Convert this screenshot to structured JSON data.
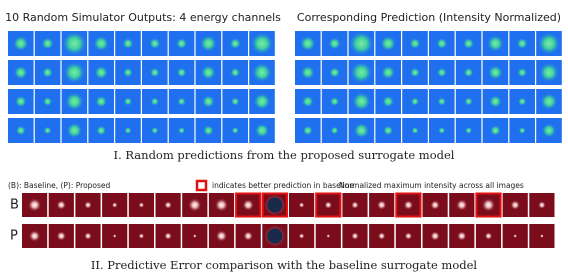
{
  "left_title": "10 Random Simulator Outputs: 4 energy channels",
  "right_title": "Corresponding Prediction (Intensity Normalized)",
  "caption_1": "I. Random predictions from the proposed surrogate model",
  "legend": {
    "baseline_proposed": "(B): Baseline, (P): Proposed",
    "highlight_note": "indicates better prediction in baseline",
    "normalization_note": "Normalized maximum intensity across all images"
  },
  "row_labels": [
    "B",
    "P"
  ],
  "caption_2": "II. Predictive Error comparison with the baseline surrogate model"
}
